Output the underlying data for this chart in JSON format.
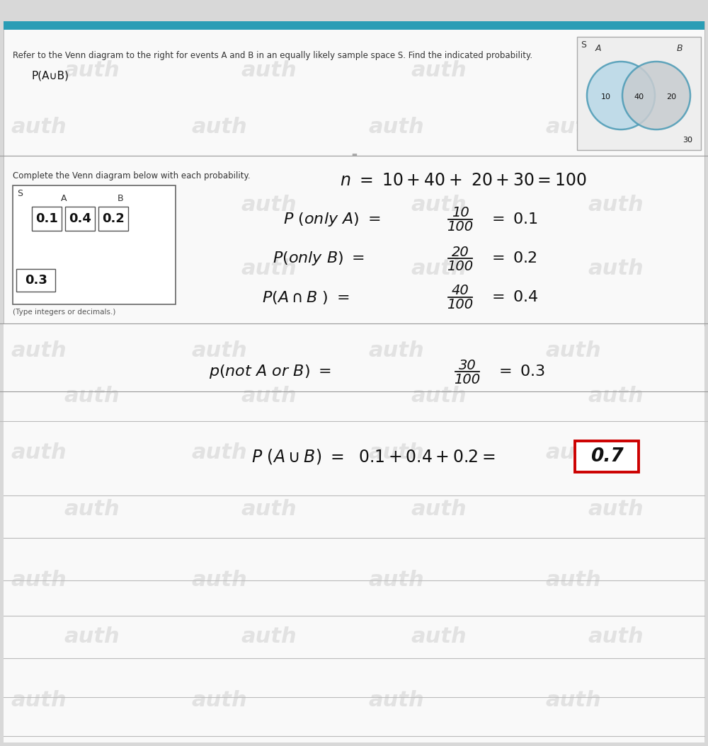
{
  "bg_top": "#e0e0e0",
  "header_bar_color": "#2a9db5",
  "page_bg": "#f7f7f7",
  "white": "#ffffff",
  "header_text": "Refer to the Venn diagram to the right for events A and B in an equally likely sample space S. Find the indicated probability.",
  "sub_text": "P(A∪B)",
  "section2_title": "Complete the Venn diagram below with each probability.",
  "section2_sub": "(Type integers or decimals.)",
  "venn_circ_color": "#4a9ab5",
  "venn_fill_a": "#b8d8e8",
  "venn_fill_b": "#c8ccd0",
  "venn_intersect": "#9ab8cc",
  "val_left": "0.1",
  "val_mid": "0.4",
  "val_right": "0.2",
  "val_out": "0.3",
  "n_line": "n = 10+40+ 20+30 = 100",
  "ans_box_color": "#cc0000",
  "wm": "auth",
  "wm_color": "#c8c8c8",
  "line_color": "#bbbbbb",
  "dark_line": "#888888",
  "font_dark": "#111111",
  "font_mid": "#333333"
}
